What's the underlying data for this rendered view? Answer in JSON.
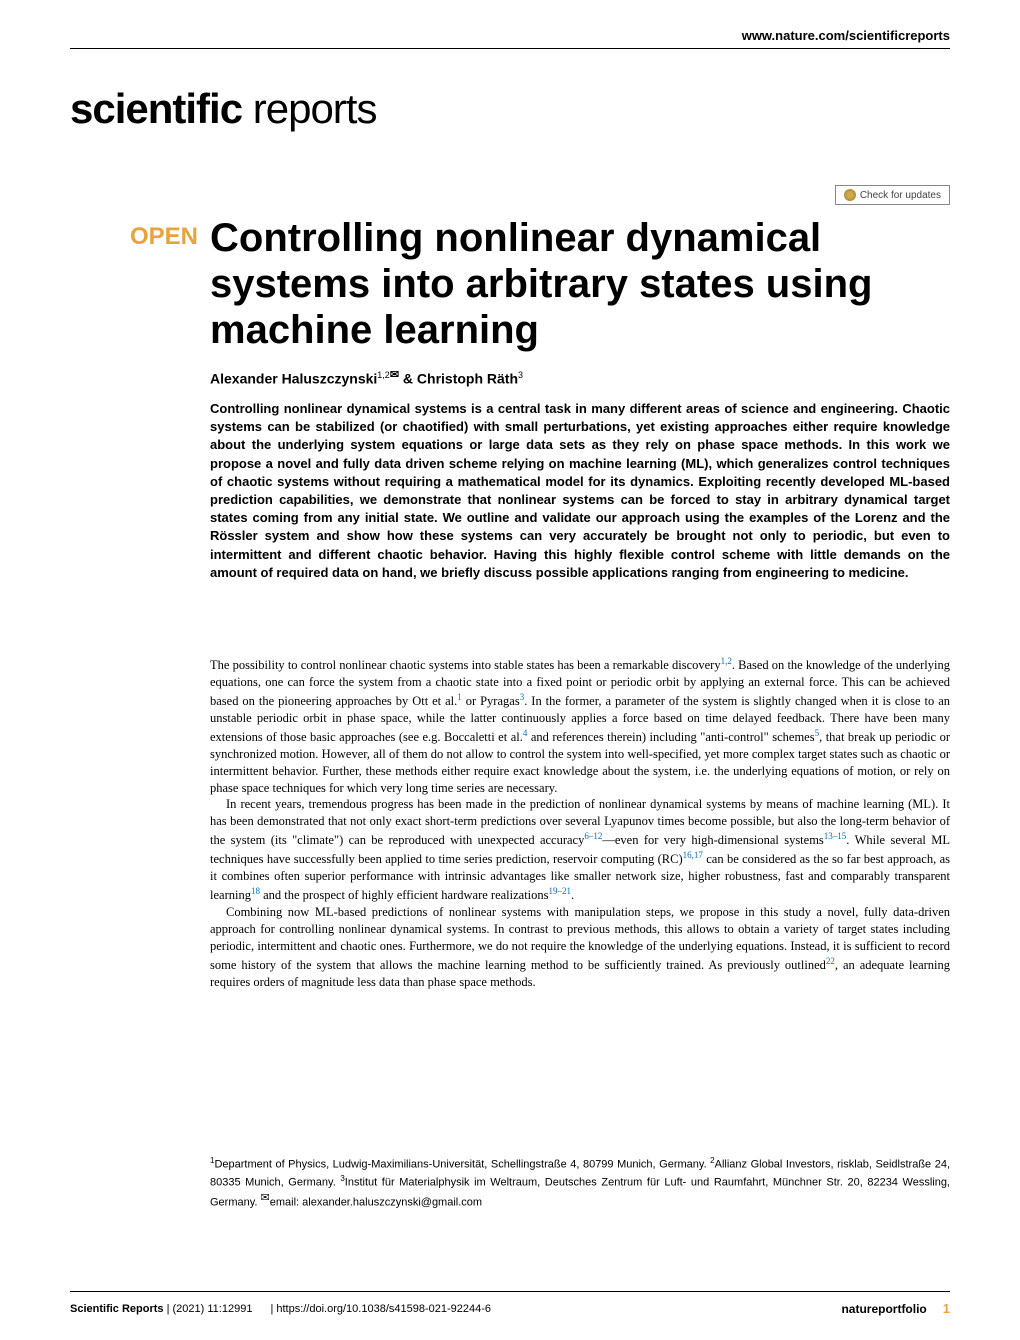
{
  "header": {
    "url": "www.nature.com/scientificreports",
    "logo_scientific": "scientific",
    "logo_reports": " reports",
    "check_updates": "Check for updates"
  },
  "article": {
    "open_label": "OPEN",
    "title": "Controlling nonlinear dynamical systems into arbitrary states using machine learning",
    "authors_prefix": "Alexander Haluszczynski",
    "authors_sup1": "1,2",
    "authors_amp": " & Christoph Räth",
    "authors_sup2": "3"
  },
  "abstract": {
    "text": "Controlling nonlinear dynamical systems is a central task in many different areas of science and engineering. Chaotic systems can be stabilized (or chaotified) with small perturbations, yet existing approaches either require knowledge about the underlying system equations or large data sets as they rely on phase space methods. In this work we propose a novel and fully data driven scheme relying on machine learning (ML), which generalizes control techniques of chaotic systems without requiring a mathematical model for its dynamics. Exploiting recently developed ML-based prediction capabilities, we demonstrate that nonlinear systems can be forced to stay in arbitrary dynamical target states coming from any initial state. We outline and validate our approach using the examples of the Lorenz and the Rössler system and show how these systems can very accurately be brought not only to periodic, but even to intermittent and different chaotic behavior. Having this highly flexible control scheme with little demands on the amount of required data on hand, we briefly discuss possible applications ranging from engineering to medicine."
  },
  "body": {
    "p1_a": "The possibility to control nonlinear chaotic systems into stable states has been a remarkable discovery",
    "p1_ref1": "1,2",
    "p1_b": ". Based on the knowledge of the underlying equations, one can force the system from a chaotic state into a fixed point or periodic orbit by applying an external force. This can be achieved based on the pioneering approaches by Ott et al.",
    "p1_ref2": "1",
    "p1_c": " or Pyragas",
    "p1_ref3": "3",
    "p1_d": ". In the former, a parameter of the system is slightly changed when it is close to an unstable periodic orbit in phase space, while the latter continuously applies a force based on time delayed feedback. There have been many extensions of those basic approaches (see e.g. Boccaletti et al.",
    "p1_ref4": "4",
    "p1_e": " and references therein) including \"anti-control\" schemes",
    "p1_ref5": "5",
    "p1_f": ", that break up periodic or synchronized motion. However, all of them do not allow to control the system into well-specified, yet more complex target states such as chaotic or intermittent behavior. Further, these methods either require exact knowledge about the system, i.e. the underlying equations of motion, or rely on phase space techniques for which very long time series are necessary.",
    "p2_a": "In recent years, tremendous progress has been made in the prediction of nonlinear dynamical systems by means of machine learning (ML). It has been demonstrated that not only exact short-term predictions over several Lyapunov times become possible, but also the long-term behavior of the system (its \"climate\") can be reproduced with unexpected accuracy",
    "p2_ref1": "6–12",
    "p2_b": "—even for very high-dimensional systems",
    "p2_ref2": "13–15",
    "p2_c": ". While several ML techniques have successfully been applied to time series prediction, reservoir computing (RC)",
    "p2_ref3": "16,17",
    "p2_d": " can be considered as the so far best approach, as it combines often superior performance with intrinsic advantages like smaller network size, higher robustness, fast and comparably transparent learning",
    "p2_ref4": "18",
    "p2_e": " and the prospect of highly efficient hardware realizations",
    "p2_ref5": "19–21",
    "p2_f": ".",
    "p3_a": "Combining now ML-based predictions of nonlinear systems with manipulation steps, we propose in this study a novel, fully data-driven approach for controlling nonlinear dynamical systems. In contrast to previous methods, this allows to obtain a variety of target states including periodic, intermittent and chaotic ones. Furthermore, we do not require the knowledge of the underlying equations. Instead, it is sufficient to record some history of the system that allows the machine learning method to be sufficiently trained. As previously outlined",
    "p3_ref1": "22",
    "p3_b": ", an adequate learning requires orders of magnitude less data than phase space methods."
  },
  "affiliations": {
    "sup1": "1",
    "aff1": "Department of Physics, Ludwig-Maximilians-Universität, Schellingstraße 4, 80799 Munich, Germany. ",
    "sup2": "2",
    "aff2": "Allianz Global Investors, risklab, Seidlstraße 24, 80335 Munich, Germany. ",
    "sup3": "3",
    "aff3": "Institut für Materialphysik im Weltraum, Deutsches Zentrum für Luft- und Raumfahrt, Münchner Str. 20, 82234 Wessling, Germany. ",
    "email_label": "email: ",
    "email": "alexander.haluszczynski@gmail.com"
  },
  "footer": {
    "journal": "Scientific Reports",
    "citation": "(2021) 11:12991",
    "doi": "| https://doi.org/10.1038/s41598-021-92244-6",
    "publisher": "natureportfolio",
    "page": "1"
  },
  "colors": {
    "accent": "#e8a33d",
    "link": "#0070c0",
    "text": "#000000",
    "background": "#ffffff"
  }
}
